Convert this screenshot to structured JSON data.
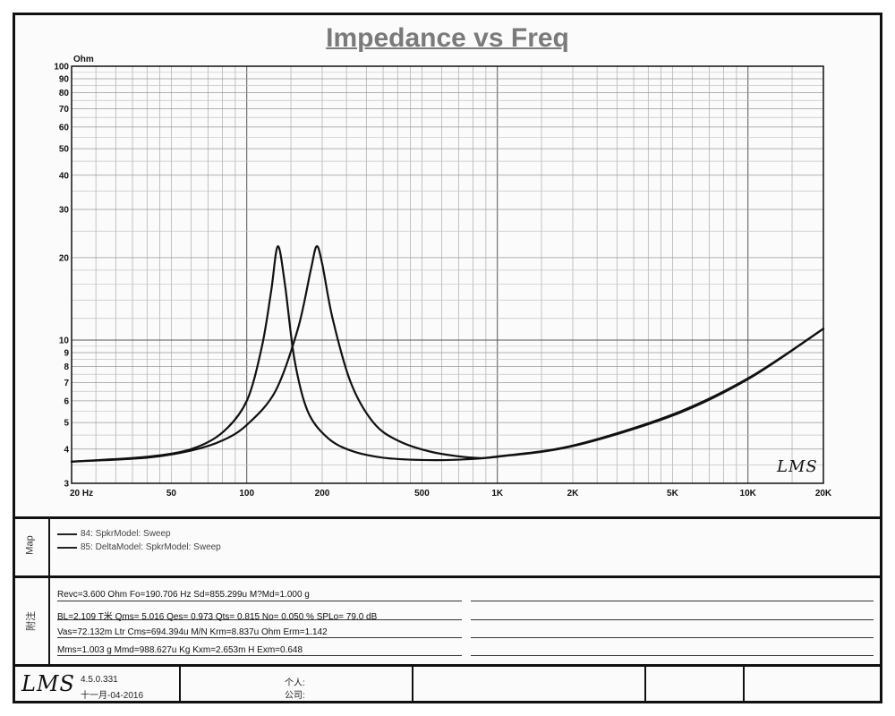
{
  "chart_data": {
    "type": "line",
    "title": "Impedance vs Freq",
    "ylabel": "Ohm",
    "xscale": "log",
    "yscale": "log",
    "xlim": [
      20,
      20000
    ],
    "ylim": [
      3,
      100
    ],
    "grid": true,
    "x_ticks": [
      {
        "value": 20,
        "label": "20  Hz"
      },
      {
        "value": 50,
        "label": "50"
      },
      {
        "value": 100,
        "label": "100"
      },
      {
        "value": 200,
        "label": "200"
      },
      {
        "value": 500,
        "label": "500"
      },
      {
        "value": 1000,
        "label": "1K"
      },
      {
        "value": 2000,
        "label": "2K"
      },
      {
        "value": 5000,
        "label": "5K"
      },
      {
        "value": 10000,
        "label": "10K"
      },
      {
        "value": 20000,
        "label": "20K"
      }
    ],
    "y_ticks": [
      {
        "value": 100,
        "label": "100"
      },
      {
        "value": 90,
        "label": "90"
      },
      {
        "value": 80,
        "label": "80"
      },
      {
        "value": 70,
        "label": "70"
      },
      {
        "value": 60,
        "label": "60"
      },
      {
        "value": 50,
        "label": "50"
      },
      {
        "value": 40,
        "label": "40"
      },
      {
        "value": 30,
        "label": "30"
      },
      {
        "value": 20,
        "label": "20"
      },
      {
        "value": 10,
        "label": "10"
      },
      {
        "value": 9,
        "label": "9"
      },
      {
        "value": 8,
        "label": "8"
      },
      {
        "value": 7,
        "label": "7"
      },
      {
        "value": 6,
        "label": "6"
      },
      {
        "value": 5,
        "label": "5"
      },
      {
        "value": 4,
        "label": "4"
      },
      {
        "value": 3,
        "label": "3"
      }
    ],
    "series": [
      {
        "name": "84: SpkrModel: Sweep",
        "x": [
          20,
          40,
          60,
          80,
          100,
          115,
          125,
          133,
          142,
          155,
          175,
          210,
          260,
          350,
          500,
          700,
          1000,
          2000,
          5000,
          10000,
          20000
        ],
        "values": [
          3.6,
          3.75,
          4.0,
          4.6,
          6.0,
          9.5,
          15.0,
          22.0,
          16.0,
          8.5,
          5.5,
          4.4,
          3.95,
          3.72,
          3.65,
          3.66,
          3.75,
          4.1,
          5.3,
          7.2,
          11.0
        ]
      },
      {
        "name": "85: DeltaModel: SpkrModel: Sweep",
        "x": [
          20,
          40,
          60,
          80,
          100,
          130,
          160,
          180,
          190,
          200,
          220,
          260,
          320,
          400,
          550,
          800,
          1000,
          2000,
          5000,
          10000,
          20000
        ],
        "values": [
          3.6,
          3.72,
          3.95,
          4.3,
          4.9,
          6.5,
          11.0,
          18.0,
          22.0,
          19.0,
          12.0,
          7.0,
          5.0,
          4.3,
          3.9,
          3.72,
          3.76,
          4.12,
          5.35,
          7.25,
          11.0
        ]
      }
    ]
  },
  "watermark": "LMS",
  "map_section": {
    "label": "Map",
    "legend": [
      "84: SpkrModel: Sweep",
      "85: DeltaModel: SpkrModel: Sweep"
    ]
  },
  "params_section": {
    "label": "附注",
    "lines": [
      "Revc=3.600 Ohm  Fo=190.706 Hz  Sd=855.299u M?Md=1.000 g",
      "BL=2.109 T米  Qms= 5.016  Qes= 0.973  Qts= 0.815  No= 0.050 %  SPLo= 79.0 dB",
      "Vas=72.132m Ltr  Cms=694.394u M/N  Krm=8.837u Ohm  Erm=1.142",
      "Mms=1.003 g  Mmd=988.627u Kg  Kxm=2.653m H  Exm=0.648"
    ]
  },
  "footer": {
    "logo": "LMS",
    "version": "4.5.0.331",
    "date": "十一月-04-2016",
    "person_label": "个人:",
    "company_label": "公司:"
  }
}
